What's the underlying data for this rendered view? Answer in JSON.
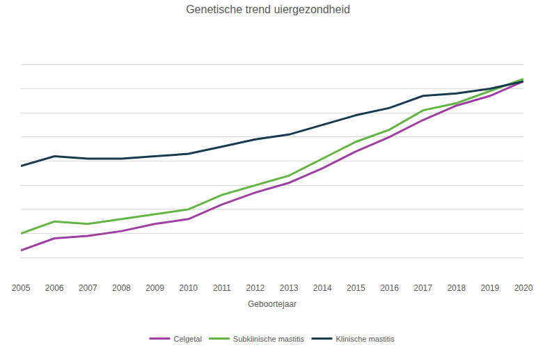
{
  "chart_data": {
    "type": "line",
    "title": "Genetische trend uiergezondheid",
    "x_label": "Geboortejaar",
    "categories": [
      "2005",
      "2006",
      "2007",
      "2008",
      "2009",
      "2010",
      "2011",
      "2012",
      "2013",
      "2014",
      "2015",
      "2016",
      "2017",
      "2018",
      "2019",
      "2020"
    ],
    "series": [
      {
        "name": "Celgetal",
        "color": "#9e3fa1",
        "line_style": "solid",
        "values": [
          1.3,
          1.8,
          1.9,
          2.1,
          2.4,
          2.6,
          3.2,
          3.7,
          4.1,
          4.7,
          5.4,
          6.0,
          6.7,
          7.3,
          7.7,
          8.3
        ]
      },
      {
        "name": "Subklinische mastitis",
        "color": "#62b445",
        "line_style": "solid",
        "values": [
          2.0,
          2.5,
          2.4,
          2.6,
          2.8,
          3.0,
          3.6,
          4.0,
          4.4,
          5.1,
          5.8,
          6.3,
          7.1,
          7.4,
          7.9,
          8.4
        ]
      },
      {
        "name": "Klinische mastitis",
        "color": "#163a4f",
        "line_style": "solid",
        "values": [
          4.8,
          5.2,
          5.1,
          5.1,
          5.2,
          5.3,
          5.6,
          5.9,
          6.1,
          6.5,
          6.9,
          7.2,
          7.7,
          7.8,
          8.0,
          8.3
        ]
      }
    ],
    "ylim": [
      0,
      10
    ],
    "yticks": [
      0,
      1,
      2,
      3,
      4,
      5,
      6,
      7,
      8,
      9,
      10
    ],
    "grid": true,
    "legend": "bottom",
    "tick_labels": "x"
  }
}
